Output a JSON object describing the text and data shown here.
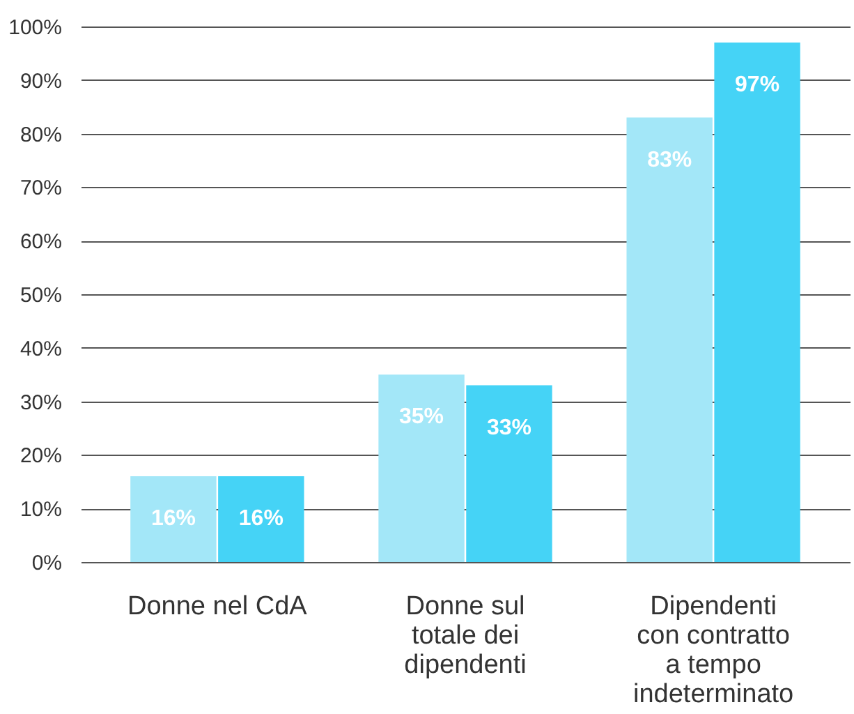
{
  "chart_data": {
    "type": "bar",
    "categories": [
      "Donne nel CdA",
      "Donne sul totale dei dipendenti",
      "Dipendenti con contratto a tempo indeterminato"
    ],
    "series": [
      {
        "color": "#a3e7f8",
        "values": [
          16,
          35,
          83
        ],
        "value_labels": [
          "16%",
          "35%",
          "83%"
        ]
      },
      {
        "color": "#45d3f6",
        "values": [
          16,
          33,
          97
        ],
        "value_labels": [
          "16%",
          "33%",
          "97%"
        ]
      }
    ],
    "ylim": [
      0,
      100
    ],
    "yticks": [
      {
        "value": 0,
        "label": "0%"
      },
      {
        "value": 10,
        "label": "10%"
      },
      {
        "value": 20,
        "label": "20%"
      },
      {
        "value": 30,
        "label": "30%"
      },
      {
        "value": 40,
        "label": "40%"
      },
      {
        "value": 50,
        "label": "50%"
      },
      {
        "value": 60,
        "label": "60%"
      },
      {
        "value": 70,
        "label": "70%"
      },
      {
        "value": 80,
        "label": "80%"
      },
      {
        "value": 90,
        "label": "90%"
      },
      {
        "value": 100,
        "label": "100%"
      }
    ],
    "grid": "y",
    "legend": false
  }
}
